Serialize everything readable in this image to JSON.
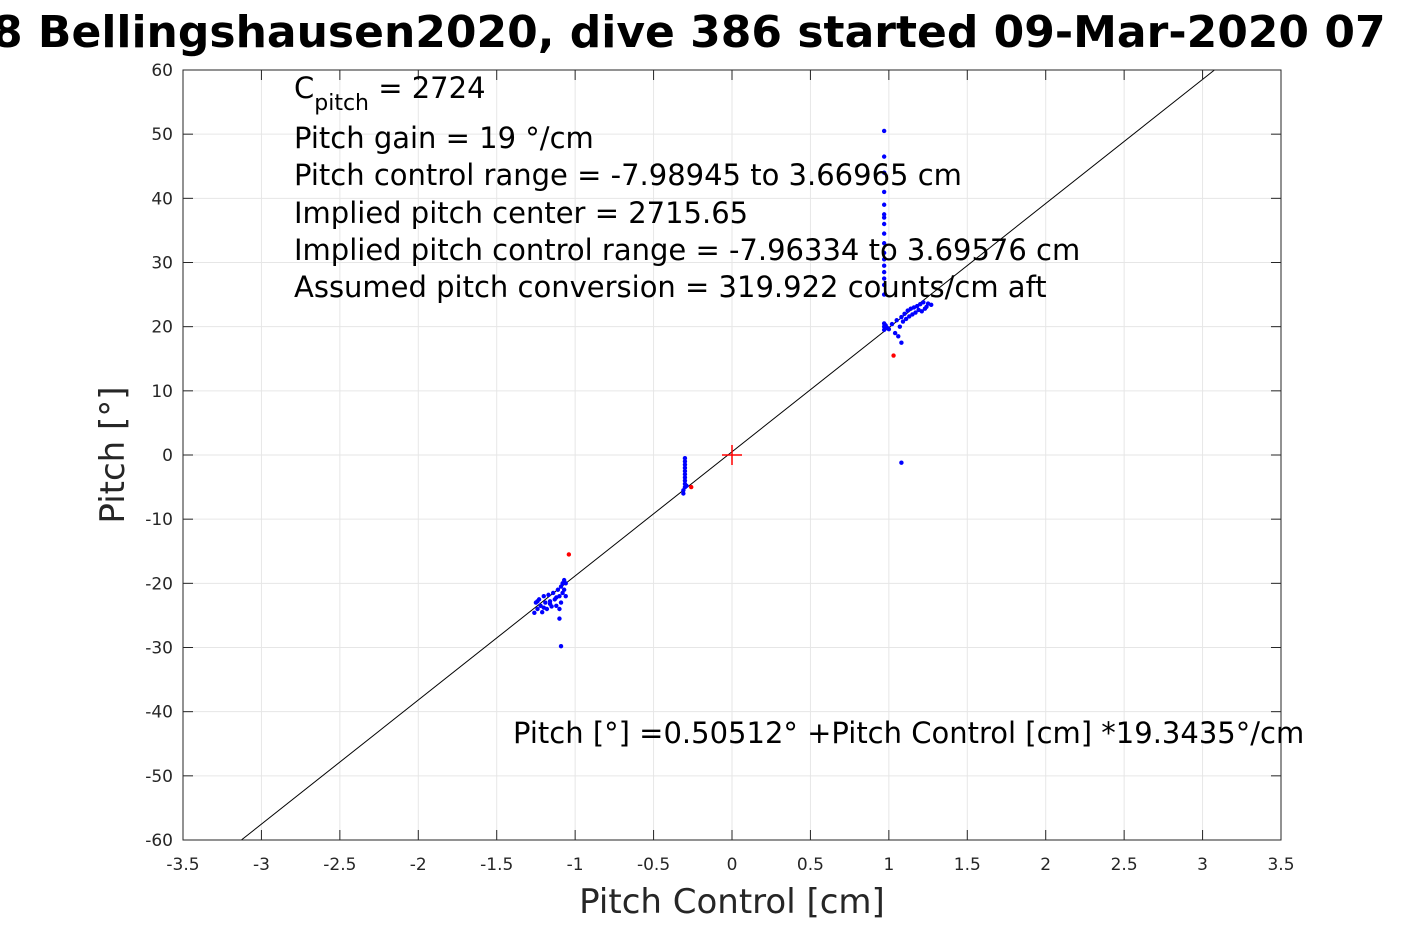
{
  "chart_data": {
    "type": "scatter",
    "title": "8 Bellingshausen2020, dive 386 started 09-Mar-2020 07",
    "xlabel": "Pitch Control [cm]",
    "ylabel": "Pitch [°]",
    "xlim": [
      -3.5,
      3.5
    ],
    "ylim": [
      -60,
      60
    ],
    "xticks": [
      -3.5,
      -3,
      -2.5,
      -2,
      -1.5,
      -1,
      -0.5,
      0,
      0.5,
      1,
      1.5,
      2,
      2.5,
      3,
      3.5
    ],
    "xtick_labels": [
      "-3.5",
      "-3",
      "-2.5",
      "-2",
      "-1.5",
      "-1",
      "-0.5",
      "0",
      "0.5",
      "1",
      "1.5",
      "2",
      "2.5",
      "3",
      "3.5"
    ],
    "yticks": [
      -60,
      -50,
      -40,
      -30,
      -20,
      -10,
      0,
      10,
      20,
      30,
      40,
      50,
      60
    ],
    "ytick_labels": [
      "-60",
      "-50",
      "-40",
      "-30",
      "-20",
      "-10",
      "0",
      "10",
      "20",
      "30",
      "40",
      "50",
      "60"
    ],
    "grid": true,
    "fit_line": {
      "intercept": 0.50512,
      "slope": 19.3435,
      "color": "#000000"
    },
    "center_marker": {
      "x": 0,
      "y": 0,
      "color": "#ff0000"
    },
    "annotations": {
      "cpitch_main": "C",
      "cpitch_sub": "pitch",
      "cpitch_value": " = 2724",
      "gain": "Pitch gain = 19 °/cm",
      "range": "Pitch control range = -7.98945 to 3.66965 cm",
      "center": "Implied pitch center = 2715.65",
      "implied_range": "Implied pitch control range = -7.96334 to 3.69576 cm",
      "conversion": "Assumed pitch conversion = 319.922 counts/cm aft",
      "fit_equation": "Pitch [°] =0.50512° +Pitch Control [cm] *19.3435°/cm"
    },
    "series": [
      {
        "color": "#0000ff",
        "points": [
          [
            -1.25,
            -23.0
          ],
          [
            -1.24,
            -24.0
          ],
          [
            -1.23,
            -22.5
          ],
          [
            -1.22,
            -23.5
          ],
          [
            -1.21,
            -24.5
          ],
          [
            -1.2,
            -22.0
          ],
          [
            -1.19,
            -23.0
          ],
          [
            -1.18,
            -24.0
          ],
          [
            -1.17,
            -21.8
          ],
          [
            -1.16,
            -22.8
          ],
          [
            -1.15,
            -23.6
          ],
          [
            -1.14,
            -21.5
          ],
          [
            -1.13,
            -22.5
          ],
          [
            -1.12,
            -23.5
          ],
          [
            -1.11,
            -21.0
          ],
          [
            -1.1,
            -22.0
          ],
          [
            -1.1,
            -24.0
          ],
          [
            -1.09,
            -20.5
          ],
          [
            -1.09,
            -23.0
          ],
          [
            -1.08,
            -21.5
          ],
          [
            -1.08,
            -20.0
          ],
          [
            -1.07,
            -21.0
          ],
          [
            -1.07,
            -19.5
          ],
          [
            -1.06,
            -20.0
          ],
          [
            -1.06,
            -22.0
          ],
          [
            -1.26,
            -24.6
          ],
          [
            -1.24,
            -22.8
          ],
          [
            -1.2,
            -23.8
          ],
          [
            -1.16,
            -23.2
          ],
          [
            -1.12,
            -22.2
          ],
          [
            -1.1,
            -25.5
          ],
          [
            -1.09,
            -29.8
          ],
          [
            -0.3,
            -0.5
          ],
          [
            -0.3,
            -1.0
          ],
          [
            -0.3,
            -1.5
          ],
          [
            -0.3,
            -2.0
          ],
          [
            -0.3,
            -2.5
          ],
          [
            -0.3,
            -3.0
          ],
          [
            -0.3,
            -3.5
          ],
          [
            -0.3,
            -4.0
          ],
          [
            -0.3,
            -4.5
          ],
          [
            -0.3,
            -5.0
          ],
          [
            -0.31,
            -5.5
          ],
          [
            -0.31,
            -6.0
          ],
          [
            -0.29,
            -4.8
          ],
          [
            0.97,
            50.5
          ],
          [
            0.97,
            46.5
          ],
          [
            0.97,
            44.0
          ],
          [
            0.97,
            41.0
          ],
          [
            0.97,
            39.0
          ],
          [
            0.97,
            37.5
          ],
          [
            0.97,
            37.0
          ],
          [
            0.97,
            36.0
          ],
          [
            0.97,
            34.5
          ],
          [
            0.97,
            33.0
          ],
          [
            0.97,
            31.5
          ],
          [
            0.97,
            30.5
          ],
          [
            0.97,
            29.5
          ],
          [
            0.97,
            28.5
          ],
          [
            0.97,
            27.5
          ],
          [
            0.97,
            26.5
          ],
          [
            0.97,
            25.0
          ],
          [
            0.97,
            20.5
          ],
          [
            0.97,
            20.0
          ],
          [
            0.97,
            19.5
          ],
          [
            0.98,
            20.2
          ],
          [
            0.99,
            19.8
          ],
          [
            1.0,
            19.6
          ],
          [
            1.02,
            20.4
          ],
          [
            1.04,
            19.0
          ],
          [
            1.05,
            21.0
          ],
          [
            1.06,
            18.5
          ],
          [
            1.07,
            20.0
          ],
          [
            1.08,
            21.5
          ],
          [
            1.08,
            17.5
          ],
          [
            1.09,
            20.8
          ],
          [
            1.1,
            22.0
          ],
          [
            1.11,
            21.2
          ],
          [
            1.12,
            22.5
          ],
          [
            1.13,
            21.6
          ],
          [
            1.14,
            22.8
          ],
          [
            1.15,
            21.9
          ],
          [
            1.16,
            23.0
          ],
          [
            1.17,
            22.2
          ],
          [
            1.18,
            23.2
          ],
          [
            1.19,
            22.6
          ],
          [
            1.2,
            23.5
          ],
          [
            1.21,
            22.4
          ],
          [
            1.22,
            23.8
          ],
          [
            1.23,
            22.8
          ],
          [
            1.24,
            23.1
          ],
          [
            1.25,
            23.6
          ],
          [
            1.27,
            23.4
          ],
          [
            1.08,
            -1.2
          ]
        ]
      },
      {
        "color": "#ff0000",
        "points": [
          [
            -1.04,
            -15.5
          ],
          [
            -0.26,
            -5.0
          ],
          [
            1.03,
            15.5
          ]
        ]
      }
    ]
  }
}
